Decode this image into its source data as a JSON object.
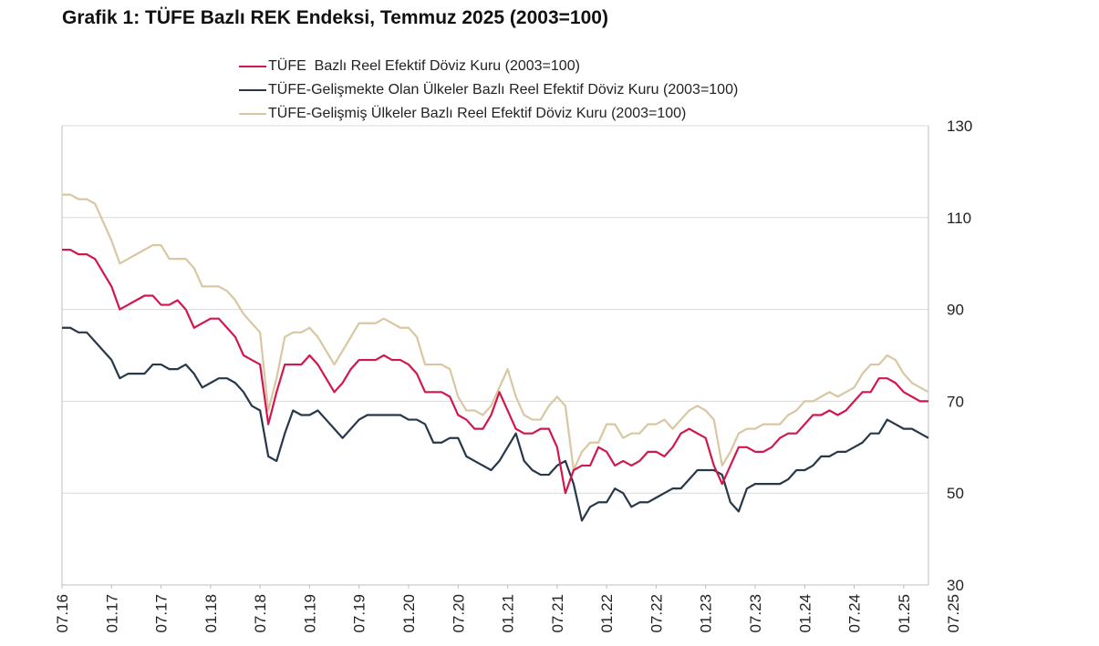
{
  "title": "Grafik 1: TÜFE Bazlı REK Endeksi, Temmuz 2025 (2003=100)",
  "colors": {
    "series_0": "#d1184e",
    "series_1": "#27384a",
    "series_2": "#d9c7a1",
    "grid": "#d9d9d9",
    "axis": "#bfbfbf"
  },
  "chart_data": {
    "type": "line",
    "title": "Grafik 1: TÜFE Bazlı REK Endeksi, Temmuz 2025 (2003=100)",
    "xlabel": "",
    "ylabel": "",
    "ylim": [
      30,
      130
    ],
    "yticks": [
      "30",
      "50",
      "70",
      "90",
      "110",
      "130"
    ],
    "y_axis_side": "right",
    "grid": "horizontal",
    "legend_position": "top-center",
    "x_ticks": [
      "07.16",
      "01.17",
      "07.17",
      "01.18",
      "07.18",
      "01.19",
      "07.19",
      "01.20",
      "07.20",
      "01.21",
      "07.21",
      "01.22",
      "07.22",
      "01.23",
      "07.23",
      "01.24",
      "07.24",
      "01.25",
      "07.25"
    ],
    "x_start": "07.16",
    "x_end": "07.25",
    "frequency": "monthly",
    "series": [
      {
        "name": "TÜFE  Bazlı Reel Efektif Döviz Kuru (2003=100)",
        "values": [
          103,
          103,
          102,
          102,
          101,
          98,
          95,
          90,
          91,
          92,
          93,
          93,
          91,
          91,
          92,
          90,
          86,
          87,
          88,
          88,
          86,
          84,
          80,
          79,
          78,
          65,
          72,
          78,
          78,
          78,
          80,
          78,
          75,
          72,
          74,
          77,
          79,
          79,
          79,
          80,
          79,
          79,
          78,
          76,
          72,
          72,
          72,
          71,
          67,
          66,
          64,
          64,
          67,
          72,
          68,
          64,
          63,
          63,
          64,
          64,
          60,
          50,
          55,
          56,
          56,
          60,
          59,
          56,
          57,
          56,
          57,
          59,
          59,
          58,
          60,
          63,
          64,
          63,
          62,
          56,
          52,
          56,
          60,
          60,
          59,
          59,
          60,
          62,
          63,
          63,
          65,
          67,
          67,
          68,
          67,
          68,
          70,
          72,
          72,
          75,
          75,
          74,
          72,
          71,
          70,
          70
        ]
      },
      {
        "name": "TÜFE-Gelişmekte Olan Ülkeler Bazlı Reel Efektif Döviz Kuru (2003=100)",
        "values": [
          86,
          86,
          85,
          85,
          83,
          81,
          79,
          75,
          76,
          76,
          76,
          78,
          78,
          77,
          77,
          78,
          76,
          73,
          74,
          75,
          75,
          74,
          72,
          69,
          68,
          58,
          57,
          63,
          68,
          67,
          67,
          68,
          66,
          64,
          62,
          64,
          66,
          67,
          67,
          67,
          67,
          67,
          66,
          66,
          65,
          61,
          61,
          62,
          62,
          58,
          57,
          56,
          55,
          57,
          60,
          63,
          57,
          55,
          54,
          54,
          56,
          57,
          52,
          44,
          47,
          48,
          48,
          51,
          50,
          47,
          48,
          48,
          49,
          50,
          51,
          51,
          53,
          55,
          55,
          55,
          54,
          48,
          46,
          51,
          52,
          52,
          52,
          52,
          53,
          55,
          55,
          56,
          58,
          58,
          59,
          59,
          60,
          61,
          63,
          63,
          66,
          65,
          64,
          64,
          63,
          62
        ]
      },
      {
        "name": "TÜFE-Gelişmiş Ülkeler Bazlı Reel Efektif Döviz Kuru (2003=100)",
        "values": [
          115,
          115,
          114,
          114,
          113,
          109,
          105,
          100,
          101,
          102,
          103,
          104,
          104,
          101,
          101,
          101,
          99,
          95,
          95,
          95,
          94,
          92,
          89,
          87,
          85,
          68,
          75,
          84,
          85,
          85,
          86,
          84,
          81,
          78,
          81,
          84,
          87,
          87,
          87,
          88,
          87,
          86,
          86,
          84,
          78,
          78,
          78,
          77,
          71,
          68,
          68,
          67,
          69,
          73,
          77,
          71,
          67,
          66,
          66,
          69,
          71,
          69,
          55,
          59,
          61,
          61,
          65,
          65,
          62,
          63,
          63,
          65,
          65,
          66,
          64,
          66,
          68,
          69,
          68,
          66,
          56,
          59,
          63,
          64,
          64,
          65,
          65,
          65,
          67,
          68,
          70,
          70,
          71,
          72,
          71,
          72,
          73,
          76,
          78,
          78,
          80,
          79,
          76,
          74,
          73,
          72
        ]
      }
    ]
  }
}
